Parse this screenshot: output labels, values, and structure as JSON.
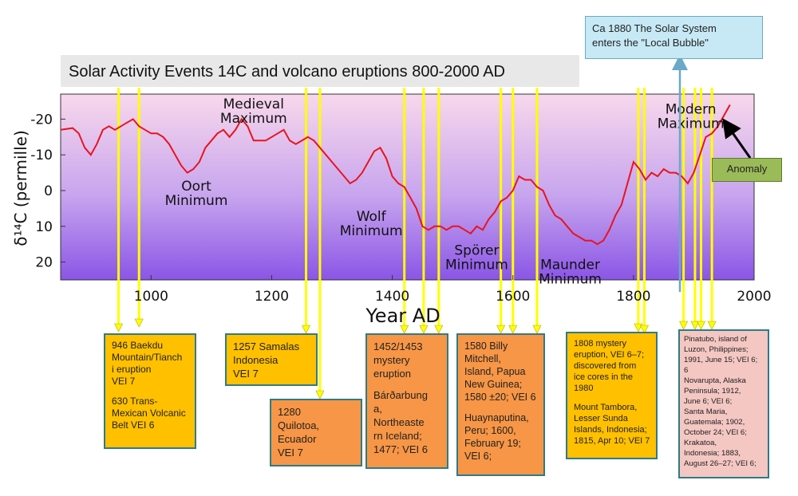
{
  "title": "Solar Activity Events 14C and volcano eruptions 800-2000 AD",
  "chart_data": {
    "type": "line",
    "xlabel": "Year AD",
    "ylabel": "δ¹⁴C (permille)",
    "xlim": [
      850,
      2000
    ],
    "ylim": [
      25,
      -27
    ],
    "xticks": [
      1000,
      1200,
      1400,
      1600,
      1800,
      2000
    ],
    "yticks": [
      -20,
      -10,
      0,
      10,
      20
    ],
    "grid": false,
    "series": [
      {
        "color": "#e8141e",
        "x": [
          850,
          870,
          880,
          890,
          900,
          910,
          920,
          930,
          940,
          950,
          960,
          970,
          980,
          990,
          1000,
          1010,
          1020,
          1030,
          1040,
          1050,
          1060,
          1070,
          1080,
          1090,
          1100,
          1110,
          1120,
          1130,
          1140,
          1150,
          1160,
          1170,
          1180,
          1190,
          1200,
          1210,
          1220,
          1230,
          1240,
          1250,
          1260,
          1270,
          1280,
          1290,
          1300,
          1310,
          1320,
          1330,
          1340,
          1350,
          1360,
          1370,
          1380,
          1390,
          1400,
          1410,
          1420,
          1430,
          1440,
          1450,
          1460,
          1470,
          1480,
          1490,
          1500,
          1510,
          1520,
          1530,
          1540,
          1550,
          1560,
          1570,
          1580,
          1590,
          1600,
          1610,
          1620,
          1630,
          1640,
          1650,
          1660,
          1670,
          1680,
          1690,
          1700,
          1710,
          1720,
          1730,
          1740,
          1750,
          1760,
          1770,
          1780,
          1790,
          1800,
          1810,
          1820,
          1830,
          1840,
          1850,
          1860,
          1870,
          1880,
          1890,
          1900,
          1910,
          1920,
          1930,
          1940,
          1950,
          1960
        ],
        "y": [
          -17,
          -17.5,
          -16,
          -12,
          -10,
          -13,
          -17,
          -18,
          -17,
          -18,
          -19,
          -20,
          -18,
          -17,
          -16,
          -16,
          -15,
          -13,
          -10,
          -7,
          -5,
          -6,
          -8,
          -12,
          -14,
          -16,
          -17,
          -15,
          -17,
          -20,
          -18,
          -14,
          -14,
          -14,
          -15,
          -16,
          -17,
          -14,
          -13,
          -14,
          -15,
          -14,
          -12,
          -10,
          -8,
          -6,
          -4,
          -2,
          -3,
          -5,
          -8,
          -11,
          -12,
          -9,
          -4,
          -2,
          -1,
          2,
          5,
          10,
          11,
          10,
          10,
          11,
          10,
          10,
          11,
          12,
          10,
          11,
          8,
          6,
          3,
          2,
          0,
          -4,
          -3,
          -3,
          -1,
          0,
          4,
          7,
          8,
          10,
          12,
          13,
          14,
          14,
          15,
          14,
          11,
          7,
          4,
          -2,
          -8,
          -6,
          -3,
          -5,
          -4,
          -6,
          -5,
          -5,
          -4,
          -2,
          -5,
          -10,
          -15,
          -16,
          -18,
          -21,
          -24
        ]
      }
    ],
    "annotations": [
      {
        "text": "Medieval\nMaximum",
        "year": 1170,
        "value": -23
      },
      {
        "text": "Oort\nMinimum",
        "year": 1075,
        "value": 0
      },
      {
        "text": "Wolf\nMinimum",
        "year": 1365,
        "value": 8.5
      },
      {
        "text": "Spörer\nMinimum",
        "year": 1540,
        "value": 18
      },
      {
        "text": "Maunder\nMinimum",
        "year": 1695,
        "value": 22
      },
      {
        "text": "Modern\nMaximum",
        "year": 1895,
        "value": -21.5
      }
    ],
    "vertical_markers": [
      {
        "year": 946
      },
      {
        "year": 980
      },
      {
        "year": 1257
      },
      {
        "year": 1280
      },
      {
        "year": 1420
      },
      {
        "year": 1452
      },
      {
        "year": 1477
      },
      {
        "year": 1580
      },
      {
        "year": 1600
      },
      {
        "year": 1640
      },
      {
        "year": 1808
      },
      {
        "year": 1818
      },
      {
        "year": 1883
      },
      {
        "year": 1902
      },
      {
        "year": 1912
      },
      {
        "year": 1930
      }
    ],
    "solar_system_marker": {
      "year": 1880
    }
  },
  "callouts": {
    "solar": "Ca 1880 The Solar System\nenters the \"Local Bubble\"",
    "anomaly": "Anomaly"
  },
  "events": [
    {
      "id": "baekdu",
      "lines": [
        "946 Baekdu\nMountain/Tianch\ni eruption\nVEI 7",
        "630 Trans-\nMexican Volcanic\nBelt VEI  6"
      ],
      "fill": "#ffc000"
    },
    {
      "id": "samalas",
      "lines": [
        "1257 Samalas\nIndonesia\nVEI 7"
      ],
      "fill": "#ffc000"
    },
    {
      "id": "quilotoa",
      "lines": [
        "1280\nQuilotoa,\nEcuador\nVEI 7"
      ],
      "fill": "#f79646"
    },
    {
      "id": "mystery1452",
      "lines": [
        "1452/1453\nmystery\neruption",
        "Bárðarbung\na,\nNortheaste\nrn Iceland;\n1477; VEI 6"
      ],
      "fill": "#f79646"
    },
    {
      "id": "billy",
      "lines": [
        "1580 Billy\nMitchell,\nIsland, Papua\nNew Guinea;\n1580 ±20; VEI 6",
        "Huaynaputina,\nPeru; 1600,\nFebruary 19;\nVEI 6;"
      ],
      "fill": "#f79646"
    },
    {
      "id": "mystery1808",
      "lines": [
        "1808 mystery\neruption, VEI 6–7;\ndiscovered from\nice cores in the\n1980",
        "Mount Tambora,\nLesser Sunda\nIslands, Indonesia;\n1815, Apr 10; VEI 7"
      ],
      "fill": "#ffc000"
    },
    {
      "id": "pinatubo",
      "lines": [
        "Pinatubo, island of\nLuzon, Philippines;\n1991, June 15; VEI 6;\n6\nNovarupta, Alaska\nPeninsula; 1912,\nJune 6; VEI 6;\nSanta Maria,\nGuatemala; 1902,\nOctober 24; VEI 6;\nKrakatoa,\nIndonesia; 1883,\nAugust 26–27; VEI 6;"
      ],
      "fill": "#f4c7c3"
    }
  ],
  "colors": {
    "plot_top": "#f8d8ec",
    "plot_bottom": "#8a55e6",
    "line": "#e8141e",
    "marker": "#ffff00",
    "title_bg": "#e8e8e8",
    "solar_box": "#c6e9f5",
    "anomaly_box": "#9bbb59"
  }
}
